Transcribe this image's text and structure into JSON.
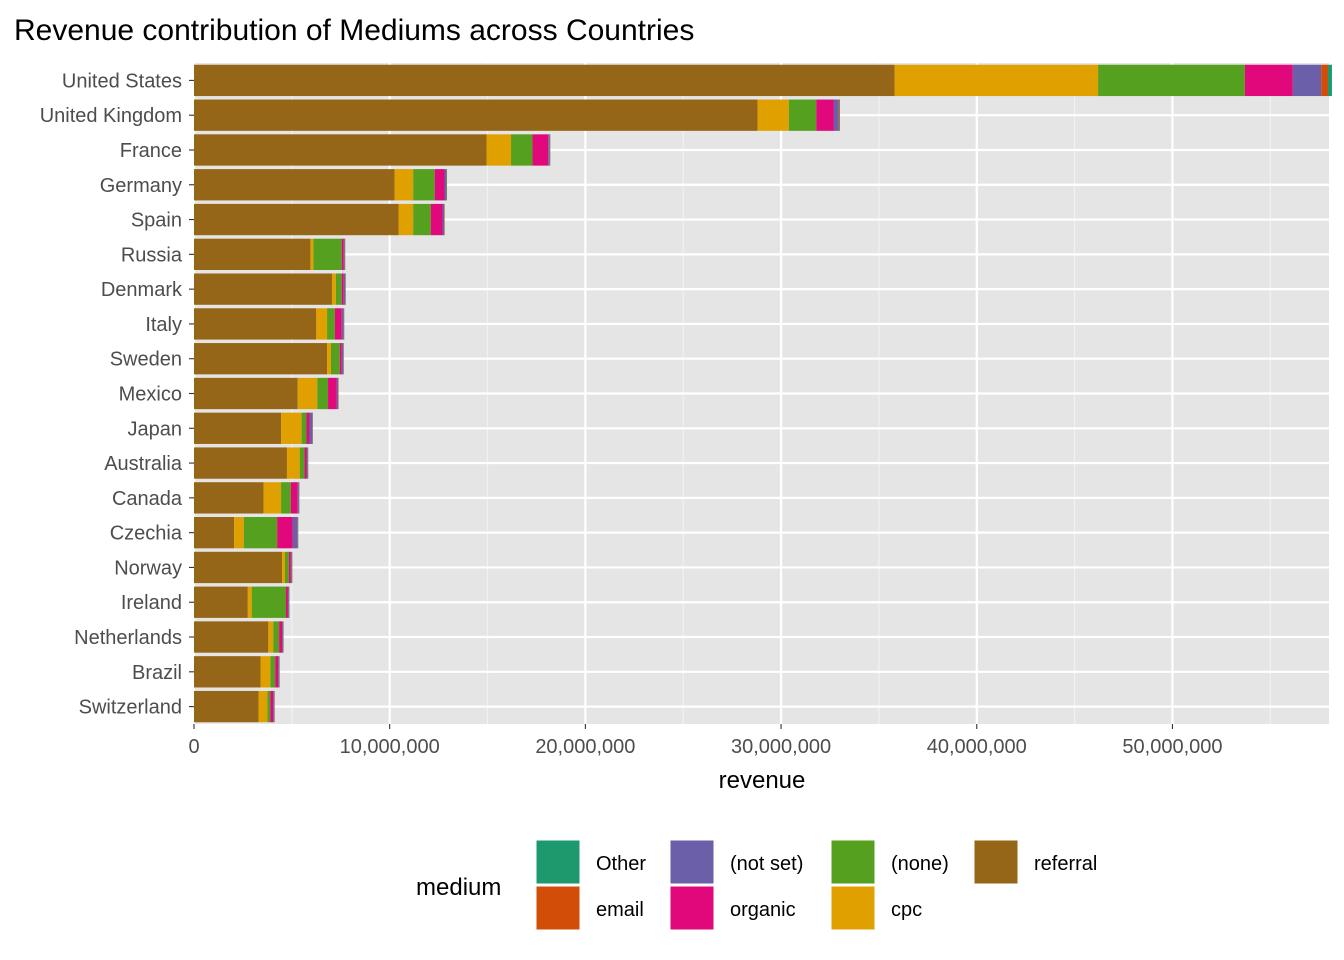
{
  "chart_data": {
    "type": "bar",
    "orientation": "horizontal",
    "stacked": true,
    "title": "Revenue contribution of Mediums across Countries",
    "xlabel": "revenue",
    "ylabel": "",
    "xlim": [
      0,
      58000000
    ],
    "x_ticks": [
      0,
      10000000,
      20000000,
      30000000,
      40000000,
      50000000
    ],
    "x_tick_labels": [
      "0",
      "10,000,000",
      "20,000,000",
      "30,000,000",
      "40,000,000",
      "50,000,000"
    ],
    "grid": true,
    "legend_title": "medium",
    "legend_position": "bottom",
    "categories": [
      "United States",
      "United Kingdom",
      "France",
      "Germany",
      "Spain",
      "Russia",
      "Denmark",
      "Italy",
      "Sweden",
      "Mexico",
      "Japan",
      "Australia",
      "Canada",
      "Czechia",
      "Norway",
      "Ireland",
      "Netherlands",
      "Brazil",
      "Switzerland"
    ],
    "series": [
      {
        "name": "referral",
        "color": "#956518",
        "values": [
          35800000,
          28800000,
          14950000,
          10250000,
          10450000,
          5950000,
          7050000,
          6250000,
          6800000,
          5300000,
          4450000,
          4750000,
          3550000,
          2050000,
          4500000,
          2750000,
          3800000,
          3400000,
          3300000
        ]
      },
      {
        "name": "cpc",
        "color": "#E0A000",
        "values": [
          10400000,
          1600000,
          1250000,
          950000,
          750000,
          150000,
          200000,
          550000,
          200000,
          1000000,
          1050000,
          650000,
          900000,
          500000,
          150000,
          200000,
          250000,
          500000,
          450000
        ]
      },
      {
        "name": "(none)",
        "color": "#55A01E",
        "values": [
          7500000,
          1400000,
          1100000,
          1100000,
          900000,
          1450000,
          300000,
          400000,
          450000,
          550000,
          250000,
          250000,
          500000,
          1700000,
          200000,
          1750000,
          300000,
          250000,
          150000
        ]
      },
      {
        "name": "organic",
        "color": "#E0087A",
        "values": [
          2450000,
          900000,
          800000,
          500000,
          600000,
          100000,
          100000,
          350000,
          100000,
          450000,
          150000,
          100000,
          350000,
          800000,
          100000,
          100000,
          150000,
          150000,
          150000
        ]
      },
      {
        "name": "(not set)",
        "color": "#6A5FA8",
        "values": [
          1450000,
          250000,
          80000,
          80000,
          80000,
          50000,
          80000,
          100000,
          80000,
          60000,
          150000,
          60000,
          60000,
          250000,
          50000,
          50000,
          50000,
          50000,
          50000
        ]
      },
      {
        "name": "email",
        "color": "#D24D08",
        "values": [
          350000,
          40000,
          20000,
          20000,
          20000,
          20000,
          20000,
          20000,
          20000,
          20000,
          20000,
          20000,
          20000,
          20000,
          20000,
          20000,
          20000,
          20000,
          20000
        ]
      },
      {
        "name": "Other",
        "color": "#1D9A6D",
        "values": [
          200000,
          20000,
          10000,
          30000,
          10000,
          10000,
          10000,
          10000,
          10000,
          10000,
          10000,
          10000,
          10000,
          10000,
          10000,
          10000,
          10000,
          10000,
          10000
        ]
      }
    ],
    "legend_order": [
      "Other",
      "(not set)",
      "(none)",
      "referral",
      "email",
      "organic",
      "cpc"
    ]
  }
}
